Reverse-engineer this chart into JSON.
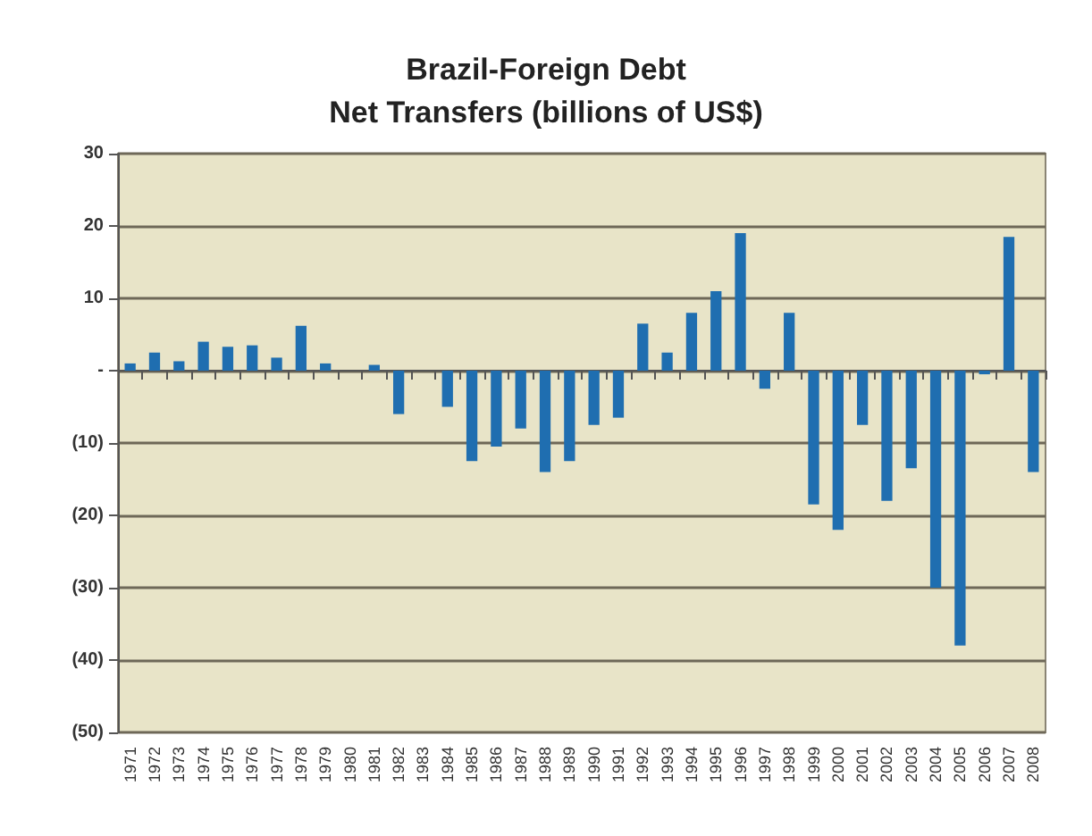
{
  "chart_data": {
    "type": "bar",
    "title": "Brazil-Foreign Debt\nNet Transfers (billions of US$)",
    "categories": [
      "1971",
      "1972",
      "1973",
      "1974",
      "1975",
      "1976",
      "1977",
      "1978",
      "1979",
      "1980",
      "1981",
      "1982",
      "1983",
      "1984",
      "1985",
      "1986",
      "1987",
      "1988",
      "1989",
      "1990",
      "1991",
      "1992",
      "1993",
      "1994",
      "1995",
      "1996",
      "1997",
      "1998",
      "1999",
      "2000",
      "2001",
      "2002",
      "2003",
      "2004",
      "2005",
      "2006",
      "2007",
      "2008"
    ],
    "values": [
      1,
      2.5,
      1.3,
      4,
      3.3,
      3.5,
      1.8,
      6.2,
      1,
      0,
      0.8,
      -6,
      0,
      -5,
      -12.5,
      -10.5,
      -8,
      -14,
      -12.5,
      -7.5,
      -6.5,
      6.5,
      2.5,
      8,
      11,
      19,
      -2.5,
      8,
      -18.5,
      -22,
      -7.5,
      -18,
      -13.5,
      -30,
      -38,
      -0.5,
      18.5,
      -14
    ],
    "color": "#1f6eb0",
    "ylim": [
      -50,
      30
    ],
    "yticks": [
      {
        "value": -50,
        "label": "(50)"
      },
      {
        "value": -40,
        "label": "(40)"
      },
      {
        "value": -30,
        "label": "(30)"
      },
      {
        "value": -20,
        "label": "(20)"
      },
      {
        "value": -10,
        "label": "(10)"
      },
      {
        "value": 0,
        "label": "-"
      },
      10,
      20,
      30
    ],
    "grid": "y"
  }
}
